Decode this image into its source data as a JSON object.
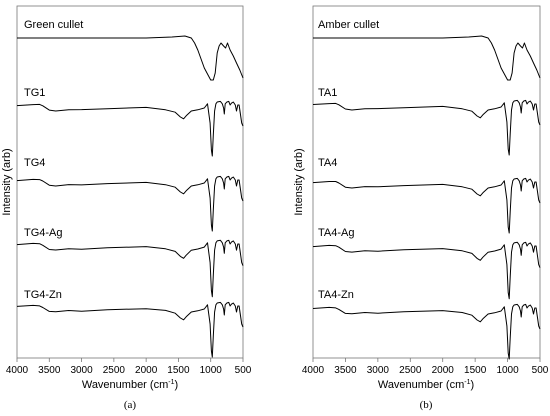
{
  "chart_data": [
    {
      "type": "line",
      "panel_label": "(a)",
      "xlabel": "Wavenumber (cm",
      "xlabel_sup": "-1",
      "xlabel_close": ")",
      "ylabel": "Intensity (arb)",
      "xlim": [
        4000,
        500
      ],
      "x_ticks": [
        4000,
        3500,
        3000,
        2500,
        2000,
        1500,
        1000,
        500
      ],
      "grid": false,
      "series": [
        {
          "name": "TG4-Zn",
          "profile": "trace",
          "offset": 4
        },
        {
          "name": "TG4-Ag",
          "profile": "trace",
          "offset": 3
        },
        {
          "name": "TG4",
          "profile": "trace",
          "offset": 2
        },
        {
          "name": "TG1",
          "profile": "trace",
          "offset": 1
        },
        {
          "name": "Green cullet",
          "profile": "cullet",
          "offset": 0
        }
      ]
    },
    {
      "type": "line",
      "panel_label": "(b)",
      "xlabel": "Wavenumber (cm",
      "xlabel_sup": "-1",
      "xlabel_close": ")",
      "ylabel": "Intensity (arb)",
      "xlim": [
        4000,
        500
      ],
      "x_ticks": [
        4000,
        3500,
        3000,
        2500,
        2000,
        1500,
        1000,
        500
      ],
      "grid": false,
      "series": [
        {
          "name": "TA4-Zn",
          "profile": "trace",
          "offset": 4
        },
        {
          "name": "TA4-Ag",
          "profile": "trace",
          "offset": 3
        },
        {
          "name": "TA4",
          "profile": "trace",
          "offset": 2
        },
        {
          "name": "TA1",
          "profile": "trace",
          "offset": 1
        },
        {
          "name": "Amber cullet",
          "profile": "cullet",
          "offset": 0
        }
      ]
    }
  ],
  "profiles": {
    "trace": [
      [
        4000,
        0
      ],
      [
        3750,
        0
      ],
      [
        3650,
        0
      ],
      [
        3600,
        -0.02
      ],
      [
        3500,
        -0.08
      ],
      [
        3400,
        -0.09
      ],
      [
        3200,
        -0.085
      ],
      [
        3000,
        -0.08
      ],
      [
        2600,
        -0.07
      ],
      [
        2000,
        -0.05
      ],
      [
        1700,
        -0.07
      ],
      [
        1550,
        -0.12
      ],
      [
        1470,
        -0.2
      ],
      [
        1420,
        -0.23
      ],
      [
        1380,
        -0.18
      ],
      [
        1300,
        -0.1
      ],
      [
        1200,
        -0.08
      ],
      [
        1100,
        -0.05
      ],
      [
        1050,
        0.02
      ],
      [
        1010,
        -0.3
      ],
      [
        990,
        -0.75
      ],
      [
        975,
        -0.85
      ],
      [
        960,
        -0.5
      ],
      [
        940,
        -0.1
      ],
      [
        920,
        0.02
      ],
      [
        900,
        0.05
      ],
      [
        850,
        0.06
      ],
      [
        820,
        0.02
      ],
      [
        800,
        -0.05
      ],
      [
        790,
        -0.15
      ],
      [
        775,
        0.02
      ],
      [
        750,
        0.05
      ],
      [
        720,
        0.06
      ],
      [
        700,
        0.0
      ],
      [
        680,
        0.03
      ],
      [
        650,
        0.05
      ],
      [
        620,
        0.0
      ],
      [
        600,
        -0.1
      ],
      [
        580,
        0.0
      ],
      [
        560,
        0.0
      ],
      [
        540,
        -0.15
      ],
      [
        520,
        -0.3
      ],
      [
        500,
        -0.35
      ]
    ],
    "cullet": [
      [
        4000,
        0
      ],
      [
        3000,
        0
      ],
      [
        2000,
        0
      ],
      [
        1600,
        0.01
      ],
      [
        1400,
        0.02
      ],
      [
        1300,
        0.0
      ],
      [
        1250,
        -0.05
      ],
      [
        1200,
        -0.12
      ],
      [
        1100,
        -0.3
      ],
      [
        1000,
        -0.42
      ],
      [
        960,
        -0.42
      ],
      [
        930,
        -0.35
      ],
      [
        900,
        -0.15
      ],
      [
        870,
        -0.08
      ],
      [
        840,
        -0.05
      ],
      [
        800,
        -0.08
      ],
      [
        770,
        -0.1
      ],
      [
        740,
        -0.05
      ],
      [
        700,
        -0.12
      ],
      [
        650,
        -0.18
      ],
      [
        600,
        -0.25
      ],
      [
        550,
        -0.32
      ],
      [
        500,
        -0.4
      ]
    ]
  }
}
